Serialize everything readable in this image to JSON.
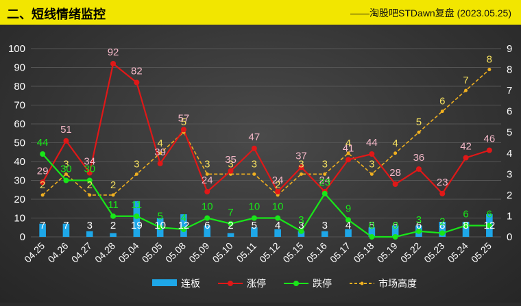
{
  "header": {
    "title": "二、短线情绪监控",
    "source": "——淘股吧STDawn复盘 (2023.05.25)"
  },
  "chart_data": {
    "type": "bar",
    "categories": [
      "04.25",
      "04.26",
      "04.27",
      "04.28",
      "05.04",
      "05.05",
      "05.08",
      "05.09",
      "05.10",
      "05.11",
      "05.12",
      "05.15",
      "05.16",
      "05.17",
      "05.18",
      "05.19",
      "05.22",
      "05.23",
      "05.24",
      "05.25"
    ],
    "ylim": [
      0,
      100
    ],
    "y2lim": [
      0,
      9
    ],
    "yticks": [
      0,
      10,
      20,
      30,
      40,
      50,
      60,
      70,
      80,
      90,
      100
    ],
    "y2ticks": [
      0,
      1,
      2,
      3,
      4,
      5,
      6,
      7,
      8,
      9
    ],
    "legend_position": "bottom",
    "series": [
      {
        "name": "连板",
        "type": "bar",
        "axis": "left",
        "color": "#1ea7e8",
        "label_color": "#ffffff",
        "values": [
          7,
          7,
          3,
          2,
          19,
          10,
          12,
          6,
          2,
          5,
          4,
          3,
          3,
          4,
          5,
          6,
          6,
          8,
          8,
          12
        ]
      },
      {
        "name": "涨停",
        "type": "line",
        "axis": "left",
        "color": "#e01818",
        "label_color": "#f4b8c8",
        "values": [
          29,
          51,
          34,
          92,
          82,
          39,
          57,
          24,
          35,
          47,
          24,
          37,
          24,
          41,
          44,
          28,
          36,
          23,
          42,
          46
        ]
      },
      {
        "name": "跌停",
        "type": "line",
        "axis": "left",
        "color": "#19e619",
        "label_color": "#19e619",
        "values": [
          44,
          30,
          30,
          11,
          11,
          5,
          4,
          10,
          7,
          10,
          10,
          3,
          23,
          9,
          0,
          0,
          3,
          2,
          6,
          6
        ]
      },
      {
        "name": "市场高度",
        "type": "dashed-line",
        "axis": "right",
        "color": "#f0b020",
        "label_color": "#f5e060",
        "values": [
          2,
          3,
          2,
          2,
          3,
          4,
          5,
          3,
          3,
          3,
          2,
          3,
          3,
          4,
          3,
          4,
          5,
          6,
          7,
          8
        ]
      }
    ]
  }
}
